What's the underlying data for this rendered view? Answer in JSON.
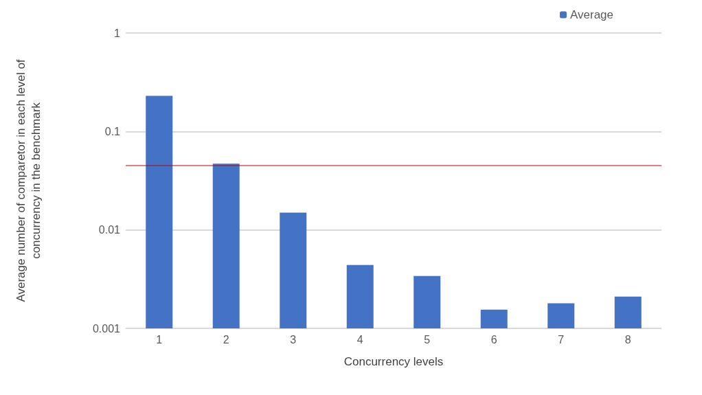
{
  "chart_data": {
    "type": "bar",
    "xlabel": "Concurrency levels",
    "ylabel": "Average number of comparetor in each level of concurrency in the benchmark",
    "categories": [
      "1",
      "2",
      "3",
      "4",
      "5",
      "6",
      "7",
      "8"
    ],
    "series": [
      {
        "name": "Average",
        "color": "#4472c4",
        "values": [
          0.23,
          0.047,
          0.015,
          0.0044,
          0.0034,
          0.00155,
          0.0018,
          0.0021
        ]
      }
    ],
    "log": true,
    "ylim": [
      0.001,
      1
    ],
    "yticks": [
      0.001,
      0.01,
      0.1,
      1
    ],
    "grid": "y",
    "legend": "top right",
    "ref_lines": [
      {
        "axis": "y",
        "value": 0.045,
        "color": "#c00000"
      }
    ]
  }
}
